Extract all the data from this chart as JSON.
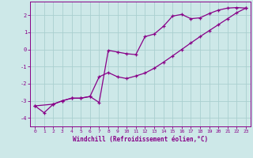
{
  "xlabel": "Windchill (Refroidissement éolien,°C)",
  "bg_color": "#cde8e8",
  "grid_color": "#aacfcf",
  "line_color": "#880088",
  "xlim": [
    -0.5,
    23.5
  ],
  "ylim": [
    -4.5,
    2.8
  ],
  "yticks": [
    -4,
    -3,
    -2,
    -1,
    0,
    1,
    2
  ],
  "xticks": [
    0,
    1,
    2,
    3,
    4,
    5,
    6,
    7,
    8,
    9,
    10,
    11,
    12,
    13,
    14,
    15,
    16,
    17,
    18,
    19,
    20,
    21,
    22,
    23
  ],
  "line1_x": [
    0,
    1,
    2,
    3,
    4,
    5,
    6,
    7,
    8,
    9,
    10,
    11,
    12,
    13,
    14,
    15,
    16,
    17,
    18,
    19,
    20,
    21,
    22,
    23
  ],
  "line1_y": [
    -3.3,
    -3.7,
    -3.2,
    -3.0,
    -2.85,
    -2.85,
    -2.75,
    -3.1,
    -0.05,
    -0.15,
    -0.25,
    -0.3,
    0.75,
    0.9,
    1.35,
    1.95,
    2.05,
    1.8,
    1.85,
    2.1,
    2.3,
    2.42,
    2.45,
    2.42
  ],
  "line2_x": [
    0,
    2,
    3,
    4,
    5,
    6,
    7,
    8,
    9,
    10,
    11,
    12,
    13,
    14,
    15,
    16,
    17,
    18,
    19,
    20,
    21,
    22,
    23
  ],
  "line2_y": [
    -3.3,
    -3.2,
    -3.0,
    -2.85,
    -2.85,
    -2.75,
    -1.6,
    -1.35,
    -1.6,
    -1.7,
    -1.55,
    -1.38,
    -1.1,
    -0.75,
    -0.38,
    0.0,
    0.38,
    0.75,
    1.1,
    1.45,
    1.8,
    2.15,
    2.42
  ]
}
